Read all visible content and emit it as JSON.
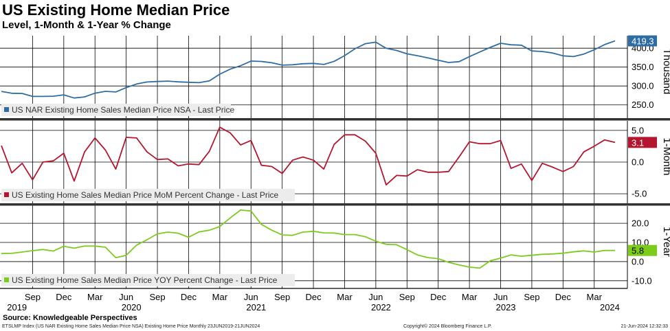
{
  "header": {
    "title": "US Existing Home Median Price",
    "subtitle": "Level, 1-Month & 1-Year % Change"
  },
  "footer": {
    "source": "Source: Knowledgeable Perspectives",
    "index_info": "ETSLMP Index (US NAR Existing Home Sales Median Price NSA) Existing Home Price  Monthly 23JUN2019-21JUN2024",
    "copyright": "Copyright© 2024 Bloomberg Finance L.P.",
    "timestamp": "21-Jun-2024 12:32:33"
  },
  "colors": {
    "price": "#2e6da4",
    "mom": "#b5162f",
    "yoy": "#7ccc1c"
  },
  "chart_data": [
    {
      "type": "line",
      "title": "US NAR Existing Home Sales Median Price NSA - Last Price",
      "ylabel": "Thousand",
      "ylim": [
        215,
        433
      ],
      "yticks": [
        250,
        300,
        350,
        400
      ],
      "ytick_labels": [
        "250.0",
        "300.0",
        "350.0",
        "400.0"
      ],
      "last_value_label": "419.3",
      "color": "#2e6da4",
      "series": [
        {
          "name": "US NAR Existing Home Sales Median Price NSA - Last Price",
          "values": [
            285.7,
            280.8,
            280.2,
            272.4,
            272.4,
            272.9,
            276.6,
            268.2,
            271.2,
            280.9,
            285.9,
            284.3,
            295.6,
            305.2,
            310.6,
            311.8,
            313.0,
            311.0,
            309.8,
            308.7,
            313.7,
            331.3,
            344.6,
            353.6,
            365.9,
            364.8,
            361.4,
            355.1,
            356.2,
            358.9,
            359.8,
            356.9,
            365.2,
            380.3,
            398.4,
            411.9,
            416.0,
            399.8,
            394.0,
            385.0,
            380.2,
            374.4,
            367.9,
            362.1,
            364.4,
            377.8,
            389.9,
            402.2,
            413.0,
            409.1,
            408.0,
            392.7,
            391.2,
            387.2,
            379.7,
            377.7,
            384.5,
            395.8,
            409.6,
            419.3
          ]
        }
      ]
    },
    {
      "type": "line",
      "title": "US Existing Home Sales Median Price MoM Percent Change - Last Price",
      "ylabel": "1-Month",
      "ylim": [
        -6.5,
        6.5
      ],
      "yticks": [
        5,
        0,
        -5
      ],
      "ytick_labels": [
        "5.0",
        "0.0",
        "-5.0"
      ],
      "last_value_label": "3.1",
      "color": "#b5162f",
      "series": [
        {
          "name": "US Existing Home Sales Median Price MoM Percent Change - Last Price",
          "values": [
            2.6,
            -1.7,
            -0.2,
            -2.8,
            0.0,
            0.2,
            1.4,
            -3.0,
            1.6,
            3.8,
            1.9,
            -1.1,
            3.9,
            3.8,
            1.6,
            0.4,
            0.5,
            -0.6,
            -0.3,
            -0.4,
            1.7,
            5.5,
            4.6,
            2.7,
            3.4,
            -0.5,
            -0.7,
            -1.8,
            0.3,
            0.8,
            0.3,
            -1.1,
            2.8,
            4.3,
            4.3,
            3.3,
            1.4,
            -3.6,
            -2.1,
            -2.2,
            -1.2,
            -1.6,
            -1.6,
            -1.5,
            0.8,
            3.2,
            2.9,
            2.9,
            3.4,
            -1.0,
            -0.3,
            -2.9,
            -0.2,
            -0.8,
            -1.5,
            -0.7,
            1.6,
            2.5,
            3.5,
            3.1
          ]
        }
      ]
    },
    {
      "type": "line",
      "title": "US Existing Home Sales Median Price YOY Percent Change - Last Price",
      "ylabel": "1-Year",
      "ylim": [
        -14,
        29
      ],
      "yticks": [
        20,
        10,
        0,
        -10
      ],
      "ytick_labels": [
        "20.0",
        "10.0",
        "0.0",
        "-10.0"
      ],
      "last_value_label": "5.8",
      "color": "#7ccc1c",
      "series": [
        {
          "name": "US Existing Home Sales Median Price YOY Percent Change - Last Price",
          "values": [
            4.2,
            4.3,
            5.0,
            5.7,
            6.3,
            5.5,
            8.0,
            7.0,
            8.1,
            8.1,
            7.5,
            2.0,
            3.3,
            8.6,
            11.4,
            14.5,
            15.4,
            14.8,
            12.7,
            15.5,
            16.4,
            18.3,
            22.8,
            26.9,
            26.4,
            19.4,
            16.4,
            13.9,
            13.7,
            15.4,
            15.8,
            15.0,
            14.9,
            14.1,
            14.1,
            13.0,
            10.6,
            9.0,
            8.8,
            6.2,
            3.5,
            2.1,
            1.5,
            -0.4,
            -1.7,
            -2.9,
            -3.4,
            0.4,
            1.8,
            3.5,
            2.8,
            3.3,
            3.8,
            4.0,
            4.4,
            5.1,
            5.6,
            5.0,
            5.8,
            5.8
          ]
        }
      ]
    }
  ],
  "x_axis": {
    "months": [
      {
        "label": "Sep",
        "index": 3
      },
      {
        "label": "Dec",
        "index": 6
      },
      {
        "label": "Mar",
        "index": 9
      },
      {
        "label": "Jun",
        "index": 12
      },
      {
        "label": "Sep",
        "index": 15
      },
      {
        "label": "Dec",
        "index": 18
      },
      {
        "label": "Mar",
        "index": 21
      },
      {
        "label": "Jun",
        "index": 24
      },
      {
        "label": "Sep",
        "index": 27
      },
      {
        "label": "Dec",
        "index": 30
      },
      {
        "label": "Mar",
        "index": 33
      },
      {
        "label": "Jun",
        "index": 36
      },
      {
        "label": "Sep",
        "index": 39
      },
      {
        "label": "Dec",
        "index": 42
      },
      {
        "label": "Mar",
        "index": 45
      },
      {
        "label": "Jun",
        "index": 48
      },
      {
        "label": "Sep",
        "index": 51
      },
      {
        "label": "Dec",
        "index": 54
      },
      {
        "label": "Mar",
        "index": 57
      }
    ],
    "years": [
      {
        "label": "2019",
        "index": 1.5
      },
      {
        "label": "2020",
        "index": 12.5
      },
      {
        "label": "2021",
        "index": 24.5
      },
      {
        "label": "2022",
        "index": 36.5
      },
      {
        "label": "2023",
        "index": 48.5
      },
      {
        "label": "2024",
        "index": 58.5
      }
    ]
  }
}
